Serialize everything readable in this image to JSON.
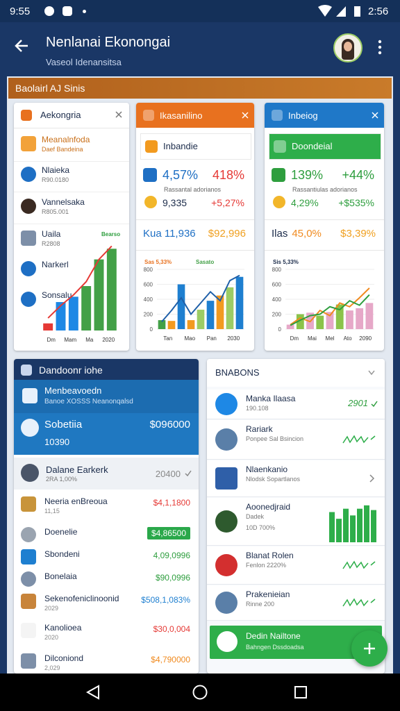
{
  "status_bar": {
    "time": "9:55",
    "clock": "2:56"
  },
  "app_bar": {
    "title": "Nenlanai Ekonongai",
    "subtitle": "Vaseol Idenansitsa"
  },
  "banner": "Baolairl AJ Sinis",
  "card_left": {
    "title": "Aekongria",
    "rows": [
      {
        "label": "Meanalnfoda",
        "sub": "Daef Bandeina"
      },
      {
        "label": "Nlaieka",
        "sub": "R90.0180"
      },
      {
        "label": "Vannelsaka",
        "sub": "R805.001"
      },
      {
        "label": "Uaila",
        "sub": "R2808"
      },
      {
        "label": "Narkerl"
      },
      {
        "label": "Sonsalu"
      }
    ],
    "chart": {
      "tags": [
        "Bearso"
      ],
      "tag_colors": [
        "#2e9e3e"
      ],
      "ylim": [
        0,
        100
      ],
      "x_labels": [
        "Dm",
        "Mam",
        "Ma",
        "2020"
      ],
      "bars": [
        8,
        32,
        38,
        50,
        80,
        92
      ],
      "bar_colors": [
        "#e53935",
        "#1e88e5",
        "#1e88e5",
        "#43a047",
        "#43a047",
        "#43a047"
      ],
      "lines": [
        {
          "color": "#e53935",
          "values": [
            14,
            28,
            40,
            55,
            80,
            95
          ]
        }
      ]
    }
  },
  "cards": [
    {
      "title": "Ikasanilino",
      "header_color": "#e8711f",
      "row": "Inbandie",
      "row_bg": "#ffffff",
      "row_color": "#1b2b4a",
      "stats": [
        "4,57%",
        "418%"
      ],
      "stats_colors": [
        "#1e6fc4",
        "#e53935"
      ],
      "caption": "Rassantal adorianos",
      "stats2": [
        "9,335",
        "+5,27%"
      ],
      "stats2_colors": [
        "#1b2b4a",
        "#e53935"
      ],
      "summary": [
        "Kua 11,936",
        "$92,996"
      ],
      "summary_colors": [
        "#1e6fc4",
        "#f0a020"
      ],
      "chart": {
        "tags": [
          "Sas 5,33%",
          "Sasato"
        ],
        "tag_colors": [
          "#e8711f",
          "#43a047"
        ],
        "ylim": [
          0,
          800
        ],
        "yticks": [
          0,
          200,
          400,
          600,
          800
        ],
        "x_labels": [
          "Tan",
          "Mao",
          "Pan",
          "2030"
        ],
        "bars": [
          120,
          110,
          600,
          120,
          260,
          380,
          450,
          560,
          700
        ],
        "bar_colors": [
          "#43a047",
          "#f29a1f",
          "#1e7fd0",
          "#f29a1f",
          "#9ccc65",
          "#1e7fd0",
          "#f29a1f",
          "#9ccc65",
          "#1e7fd0"
        ],
        "lines": [
          {
            "color": "#1e5fa8",
            "values": [
              100,
              250,
              420,
              200,
              350,
              500,
              380,
              650,
              720
            ]
          }
        ]
      }
    },
    {
      "title": "Inbeiog",
      "header_color": "#1f78c8",
      "row": "Doondeial",
      "row_bg": "#2eae4a",
      "row_color": "#ffffff",
      "stats": [
        "139%",
        "+44%"
      ],
      "stats_colors": [
        "#2e9e3e",
        "#2e9e3e"
      ],
      "caption": "Rassantiulas adorianos",
      "stats2": [
        "4,29%",
        "+$535%"
      ],
      "stats2_colors": [
        "#2e9e3e",
        "#2e9e3e"
      ],
      "summary": [
        "Ilas",
        "45,0%",
        "$3,39%"
      ],
      "summary_colors": [
        "#1b2b4a",
        "#f08a1f",
        "#f0a020"
      ],
      "chart": {
        "tags": [
          "Sis 5,33%"
        ],
        "tag_colors": [
          "#1b2b4a"
        ],
        "ylim": [
          0,
          800
        ],
        "yticks": [
          0,
          200,
          400,
          600,
          800
        ],
        "x_labels": [
          "Dm",
          "Mai",
          "Mel",
          "Ato",
          "2090"
        ],
        "bars": [
          60,
          200,
          220,
          180,
          230,
          330,
          250,
          280,
          350
        ],
        "bar_colors": [
          "#e6a8c8",
          "#8bc34a",
          "#e6a8c8",
          "#8bc34a",
          "#e6a8c8",
          "#8bc34a",
          "#e6a8c8",
          "#e6a8c8",
          "#e6a8c8"
        ],
        "lines": [
          {
            "color": "#f08a1f",
            "values": [
              60,
              150,
              100,
              250,
              180,
              350,
              300,
              420,
              550
            ]
          },
          {
            "color": "#2e9e3e",
            "values": [
              50,
              120,
              180,
              200,
              300,
              260,
              380,
              320,
              460
            ]
          }
        ]
      }
    }
  ],
  "panel_left": {
    "title": "Dandoonr iohe",
    "feature": {
      "label": "Menbeavoedn",
      "sub": "Banoe XOSSS Neanonqalsd"
    },
    "balance": {
      "label": "Sobetiia",
      "value": "$096000",
      "sub": "10390"
    },
    "highlight": {
      "label": "Dalane Earkerk",
      "sub": "2RA 1,00%",
      "value": "20400"
    },
    "rows": [
      {
        "label": "Neeria enBreoua",
        "sub": "11,15",
        "value": "$4,1,1800",
        "color": "#e53935"
      },
      {
        "label": "Doenelie",
        "value": "$4,86500",
        "color": "#ffffff",
        "badge": "#2aa84a"
      },
      {
        "label": "Sbondeni",
        "value": "4,09,0996",
        "color": "#2e9e3e"
      },
      {
        "label": "Bonelaia",
        "value": "$90,0996",
        "color": "#2e9e3e"
      },
      {
        "label": "Sekenofeniclinoonid",
        "sub": "2029",
        "value": "$508,1,083%",
        "color": "#1e7fd0"
      },
      {
        "label": "Kanolioea",
        "sub": "2020",
        "value": "$30,0,004",
        "color": "#e53935"
      },
      {
        "label": "Dilconiond",
        "sub": "2,029",
        "value": "$4,790000",
        "color": "#f08a1f"
      }
    ]
  },
  "panel_right": {
    "title": "BNABONS",
    "rows": [
      {
        "label": "Manka Ilaasa",
        "sub": "190.108",
        "value": "2901"
      },
      {
        "label": "Rariark",
        "sub": "Ponpee Sal Bsincion"
      },
      {
        "label": "Nlaenkanio",
        "sub": "Nlodsk Sopartlanos"
      },
      {
        "label": "Aoonedjraid",
        "sub": "Dadek",
        "sub2": "10D 700%",
        "bars": [
          45,
          35,
          50,
          40,
          50,
          55,
          48
        ],
        "bars_ylim": [
          0,
          60
        ]
      },
      {
        "label": "Blanat Rolen",
        "sub": "Fenlon 2220%"
      },
      {
        "label": "Prakenieian",
        "sub": "Rinne 200"
      }
    ],
    "action": {
      "label": "Dedin Nailtone",
      "sub": "Bahngen Dssdoadsa"
    }
  }
}
